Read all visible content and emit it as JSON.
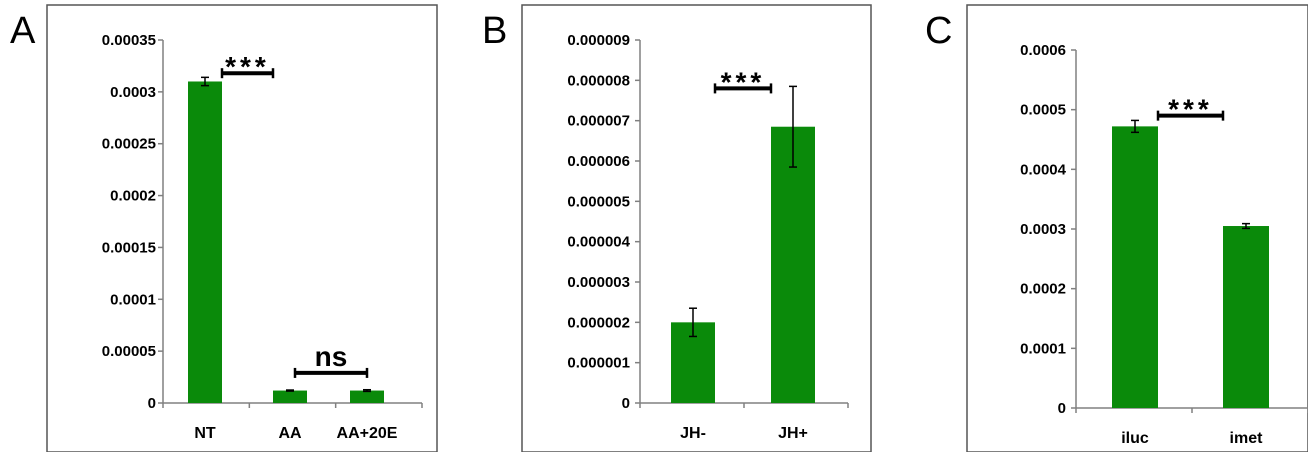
{
  "chart_data": [
    {
      "type": "bar",
      "panel_label": "A",
      "categories": [
        "NT",
        "AA",
        "AA+20E"
      ],
      "values": [
        0.00031,
        1.2e-05,
        1.2e-05
      ],
      "errors": [
        4e-06,
        5e-07,
        8e-07
      ],
      "ylim": [
        0,
        0.00035
      ],
      "yticks": [
        "0",
        "0.00005",
        "0.0001",
        "0.00015",
        "0.0002",
        "0.00025",
        "0.0003",
        "0.00035"
      ],
      "color": "#0a8a0a",
      "annotations": [
        {
          "text": "***",
          "from_category": 0,
          "to_category": 1,
          "level": 0.000318
        },
        {
          "text": "ns",
          "from_category": 1,
          "to_category": 2,
          "level": 2.9e-05
        }
      ]
    },
    {
      "type": "bar",
      "panel_label": "B",
      "categories": [
        "JH-",
        "JH+"
      ],
      "values": [
        2e-06,
        6.85e-06
      ],
      "errors": [
        3.5e-07,
        1e-06
      ],
      "ylim": [
        0,
        9e-06
      ],
      "yticks": [
        "0",
        "0.000001",
        "0.000002",
        "0.000003",
        "0.000004",
        "0.000005",
        "0.000006",
        "0.000007",
        "0.000008",
        "0.000009"
      ],
      "color": "#0a8a0a",
      "annotations": [
        {
          "text": "***",
          "from_category": 0,
          "to_category": 1,
          "level": 7.8e-06
        }
      ]
    },
    {
      "type": "bar",
      "panel_label": "C",
      "categories": [
        "iluc",
        "imet"
      ],
      "values": [
        0.000472,
        0.000305
      ],
      "errors": [
        1e-05,
        4e-06
      ],
      "ylim": [
        0,
        0.0006
      ],
      "yticks": [
        "0",
        "0.0001",
        "0.0002",
        "0.0003",
        "0.0004",
        "0.0005",
        "0.0006"
      ],
      "color": "#0a8a0a",
      "annotations": [
        {
          "text": "***",
          "from_category": 0,
          "to_category": 1,
          "level": 0.00049
        }
      ]
    }
  ]
}
